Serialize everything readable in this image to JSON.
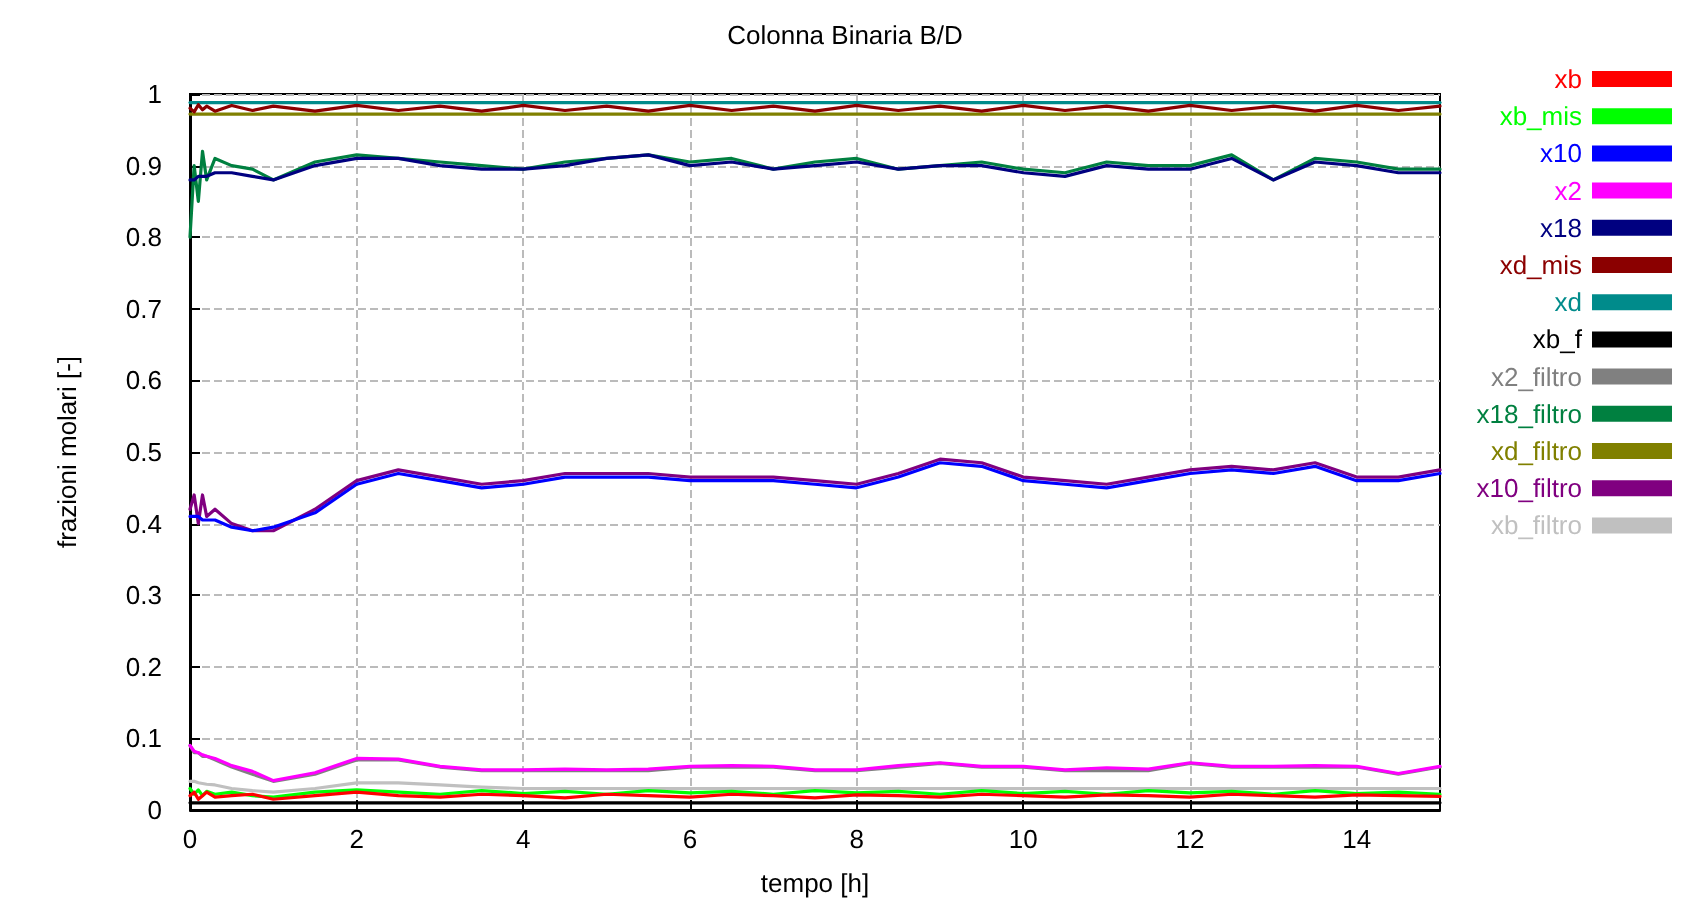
{
  "chart_data": {
    "type": "line",
    "title": "Colonna Binaria B/D",
    "xlabel": "tempo [h]",
    "ylabel": "frazioni molari [-]",
    "x": [
      0,
      0.05,
      0.1,
      0.15,
      0.2,
      0.3,
      0.5,
      0.75,
      1,
      1.5,
      2,
      2.5,
      3,
      3.5,
      4,
      4.5,
      5,
      5.5,
      6,
      6.5,
      7,
      7.5,
      8,
      8.5,
      9,
      9.5,
      10,
      10.5,
      11,
      11.5,
      12,
      12.5,
      13,
      13.5,
      14,
      14.5,
      15
    ],
    "xlim": [
      0,
      15
    ],
    "xticks": [
      0,
      2,
      4,
      6,
      8,
      10,
      12,
      14
    ],
    "ylim": [
      0,
      1
    ],
    "yticks": [
      0,
      0.1,
      0.2,
      0.3,
      0.4,
      0.5,
      0.6,
      0.7,
      0.8,
      0.9,
      1
    ],
    "grid": true,
    "legend": "top right",
    "marker": "none",
    "line_style": "solid",
    "series": [
      {
        "name": "xb",
        "color": "#ff0000",
        "values": [
          0.02,
          0.025,
          0.015,
          0.02,
          0.025,
          0.018,
          0.02,
          0.022,
          0.015,
          0.02,
          0.025,
          0.02,
          0.018,
          0.022,
          0.02,
          0.017,
          0.022,
          0.02,
          0.018,
          0.022,
          0.02,
          0.017,
          0.021,
          0.02,
          0.018,
          0.022,
          0.02,
          0.018,
          0.021,
          0.02,
          0.018,
          0.022,
          0.02,
          0.018,
          0.021,
          0.02,
          0.019
        ]
      },
      {
        "name": "xb_mis",
        "color": "#00ff00",
        "values": [
          0.03,
          0.022,
          0.028,
          0.02,
          0.026,
          0.022,
          0.025,
          0.02,
          0.018,
          0.025,
          0.028,
          0.025,
          0.022,
          0.027,
          0.023,
          0.026,
          0.022,
          0.027,
          0.024,
          0.026,
          0.022,
          0.027,
          0.024,
          0.026,
          0.022,
          0.027,
          0.023,
          0.026,
          0.022,
          0.027,
          0.024,
          0.026,
          0.022,
          0.027,
          0.023,
          0.025,
          0.022
        ]
      },
      {
        "name": "x10",
        "color": "#0000ff",
        "values": [
          0.41,
          0.41,
          0.41,
          0.405,
          0.405,
          0.405,
          0.395,
          0.39,
          0.395,
          0.415,
          0.455,
          0.47,
          0.46,
          0.45,
          0.455,
          0.465,
          0.465,
          0.465,
          0.46,
          0.46,
          0.46,
          0.455,
          0.45,
          0.465,
          0.485,
          0.48,
          0.46,
          0.455,
          0.45,
          0.46,
          0.47,
          0.475,
          0.47,
          0.48,
          0.46,
          0.46,
          0.47
        ]
      },
      {
        "name": "x2",
        "color": "#ff00ff",
        "values": [
          0.09,
          0.082,
          0.08,
          0.077,
          0.075,
          0.072,
          0.062,
          0.054,
          0.041,
          0.052,
          0.072,
          0.071,
          0.061,
          0.056,
          0.056,
          0.057,
          0.056,
          0.057,
          0.061,
          0.062,
          0.061,
          0.056,
          0.056,
          0.062,
          0.066,
          0.061,
          0.061,
          0.056,
          0.059,
          0.057,
          0.066,
          0.061,
          0.061,
          0.062,
          0.061,
          0.051,
          0.061
        ]
      },
      {
        "name": "x18",
        "color": "#000080",
        "values": [
          0.88,
          0.88,
          0.885,
          0.885,
          0.885,
          0.89,
          0.89,
          0.885,
          0.88,
          0.9,
          0.91,
          0.91,
          0.9,
          0.895,
          0.895,
          0.9,
          0.91,
          0.915,
          0.9,
          0.905,
          0.895,
          0.9,
          0.905,
          0.895,
          0.9,
          0.9,
          0.89,
          0.885,
          0.9,
          0.895,
          0.895,
          0.91,
          0.88,
          0.905,
          0.9,
          0.89,
          0.89
        ]
      },
      {
        "name": "xd_mis",
        "color": "#8b0000",
        "values": [
          0.98,
          0.975,
          0.985,
          0.978,
          0.983,
          0.976,
          0.984,
          0.977,
          0.983,
          0.976,
          0.984,
          0.977,
          0.983,
          0.976,
          0.984,
          0.977,
          0.983,
          0.976,
          0.984,
          0.977,
          0.983,
          0.976,
          0.984,
          0.977,
          0.983,
          0.976,
          0.984,
          0.977,
          0.983,
          0.976,
          0.984,
          0.977,
          0.983,
          0.976,
          0.984,
          0.977,
          0.983
        ]
      },
      {
        "name": "xd",
        "color": "#008b8b",
        "values": [
          0.988,
          0.988,
          0.988,
          0.988,
          0.988,
          0.988,
          0.988,
          0.988,
          0.988,
          0.988,
          0.988,
          0.988,
          0.988,
          0.988,
          0.988,
          0.988,
          0.988,
          0.988,
          0.988,
          0.988,
          0.988,
          0.988,
          0.988,
          0.988,
          0.988,
          0.988,
          0.988,
          0.988,
          0.988,
          0.988,
          0.988,
          0.988,
          0.988,
          0.988,
          0.988,
          0.988,
          0.988
        ]
      },
      {
        "name": "xb_f",
        "color": "#000000",
        "values": [
          0.01,
          0.01,
          0.01,
          0.01,
          0.01,
          0.01,
          0.01,
          0.01,
          0.01,
          0.01,
          0.01,
          0.01,
          0.01,
          0.01,
          0.01,
          0.01,
          0.01,
          0.01,
          0.01,
          0.01,
          0.01,
          0.01,
          0.01,
          0.01,
          0.01,
          0.01,
          0.01,
          0.01,
          0.01,
          0.01,
          0.01,
          0.01,
          0.01,
          0.01,
          0.01,
          0.01,
          0.01
        ]
      },
      {
        "name": "x2_filtro",
        "color": "#808080",
        "values": [
          0.09,
          0.08,
          0.08,
          0.075,
          0.075,
          0.07,
          0.06,
          0.05,
          0.04,
          0.05,
          0.07,
          0.07,
          0.06,
          0.055,
          0.055,
          0.055,
          0.055,
          0.055,
          0.06,
          0.06,
          0.06,
          0.055,
          0.055,
          0.06,
          0.065,
          0.06,
          0.06,
          0.055,
          0.055,
          0.055,
          0.065,
          0.06,
          0.06,
          0.06,
          0.06,
          0.05,
          0.06
        ]
      },
      {
        "name": "x18_filtro",
        "color": "#008040",
        "values": [
          0.8,
          0.9,
          0.85,
          0.92,
          0.88,
          0.91,
          0.9,
          0.895,
          0.88,
          0.905,
          0.915,
          0.91,
          0.905,
          0.9,
          0.895,
          0.905,
          0.91,
          0.915,
          0.905,
          0.91,
          0.895,
          0.905,
          0.91,
          0.895,
          0.9,
          0.905,
          0.895,
          0.89,
          0.905,
          0.9,
          0.9,
          0.915,
          0.88,
          0.91,
          0.905,
          0.895,
          0.895
        ]
      },
      {
        "name": "xd_filtro",
        "color": "#808000",
        "values": [
          0.972,
          0.972,
          0.972,
          0.972,
          0.972,
          0.972,
          0.972,
          0.972,
          0.972,
          0.972,
          0.972,
          0.972,
          0.972,
          0.972,
          0.972,
          0.972,
          0.972,
          0.972,
          0.972,
          0.972,
          0.972,
          0.972,
          0.972,
          0.972,
          0.972,
          0.972,
          0.972,
          0.972,
          0.972,
          0.972,
          0.972,
          0.972,
          0.972,
          0.972,
          0.972,
          0.972,
          0.972
        ]
      },
      {
        "name": "x10_filtro",
        "color": "#800080",
        "values": [
          0.42,
          0.44,
          0.4,
          0.44,
          0.41,
          0.42,
          0.4,
          0.39,
          0.39,
          0.42,
          0.46,
          0.475,
          0.465,
          0.455,
          0.46,
          0.47,
          0.47,
          0.47,
          0.465,
          0.465,
          0.465,
          0.46,
          0.455,
          0.47,
          0.49,
          0.485,
          0.465,
          0.46,
          0.455,
          0.465,
          0.475,
          0.48,
          0.475,
          0.485,
          0.465,
          0.465,
          0.475
        ]
      },
      {
        "name": "xb_filtro",
        "color": "#c0c0c0",
        "values": [
          0.04,
          0.04,
          0.038,
          0.037,
          0.036,
          0.035,
          0.03,
          0.027,
          0.025,
          0.03,
          0.038,
          0.038,
          0.035,
          0.032,
          0.03,
          0.03,
          0.03,
          0.03,
          0.03,
          0.03,
          0.03,
          0.03,
          0.03,
          0.03,
          0.03,
          0.03,
          0.03,
          0.03,
          0.03,
          0.03,
          0.03,
          0.03,
          0.03,
          0.03,
          0.03,
          0.03,
          0.03
        ]
      }
    ]
  }
}
